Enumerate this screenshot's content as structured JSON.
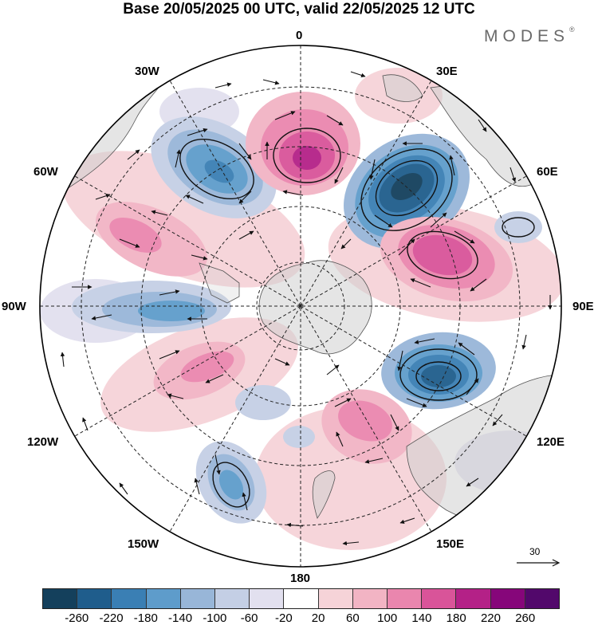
{
  "title": "Base 20/05/2025 00 UTC, valid 22/05/2025 12 UTC",
  "brand": "MODES",
  "brand_mark": "®",
  "longitude_labels": {
    "n": "0",
    "ne30": "30E",
    "ne60": "60E",
    "e": "90E",
    "se120": "120E",
    "se150": "150E",
    "s": "180",
    "sw150": "150W",
    "sw120": "120W",
    "w": "90W",
    "nw60": "60W",
    "nw30": "30W"
  },
  "reference_vector": {
    "value": "30"
  },
  "colorbar": {
    "tick_labels": [
      "-260",
      "-220",
      "-180",
      "-140",
      "-100",
      "-60",
      "-20",
      "20",
      "60",
      "100",
      "140",
      "180",
      "220",
      "260"
    ],
    "colors": [
      "#14405c",
      "#1f5d8c",
      "#3a7fb4",
      "#5e9ccb",
      "#98b6d8",
      "#c4cfe5",
      "#e2e0ef",
      "#ffffff",
      "#f6d3d8",
      "#f2b4c4",
      "#ea86ae",
      "#d95499",
      "#b42187",
      "#86067a",
      "#52086b"
    ]
  }
}
